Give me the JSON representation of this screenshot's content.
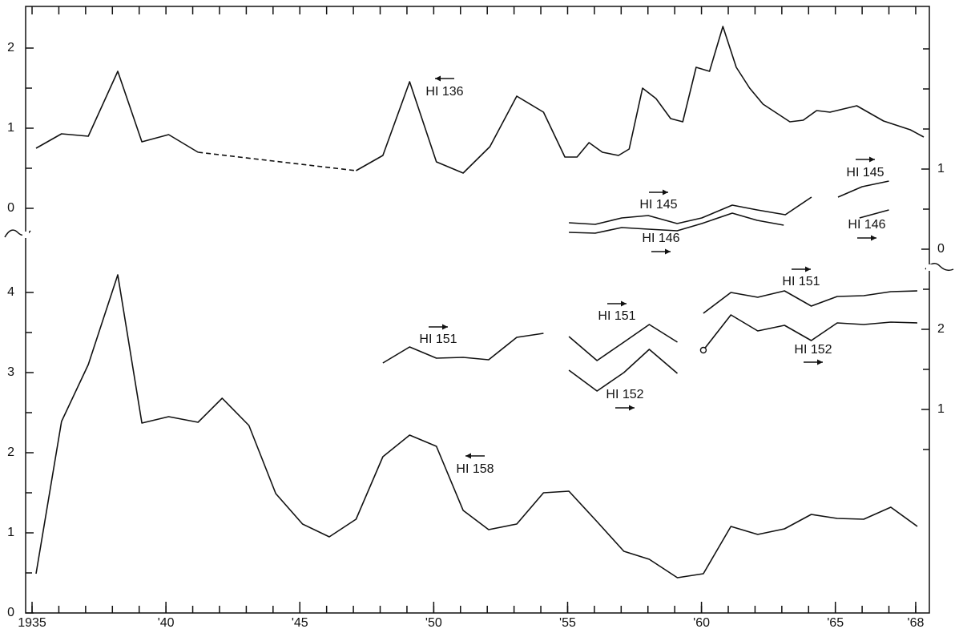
{
  "chart_data": [
    {
      "type": "line",
      "xlim": [
        1934.76,
        1968.51
      ],
      "ylim": [
        0,
        2.52
      ],
      "yticks": [
        0,
        1,
        2
      ],
      "minor_yticks": [
        0.5,
        1.5
      ],
      "y2lim": [
        0,
        3.03
      ],
      "y2ticks": [
        0,
        1
      ],
      "minor_y2ticks": [
        0.5,
        1.5,
        2,
        2.5
      ],
      "series": [
        {
          "name": "HI 136",
          "color": "#111111",
          "arrow": "left",
          "dashed_segments": [
            6
          ],
          "x": [
            1935.15,
            1936.1,
            1937.1,
            1938.2,
            1939.1,
            1940.1,
            1941.2,
            1947.1,
            1948.1,
            1949.1,
            1950.1,
            1951.1,
            1952.1,
            1953.1,
            1954.1,
            1954.9,
            1955.35,
            1955.8,
            1956.3,
            1956.9,
            1957.3,
            1957.8,
            1958.3,
            1958.85,
            1959.3,
            1959.8,
            1960.3,
            1960.8,
            1961.3,
            1961.8,
            1962.3,
            1963.3,
            1963.8,
            1964.3,
            1964.8,
            1965.8,
            1966.8,
            1967.8,
            1968.3
          ],
          "values": [
            0.75,
            0.93,
            0.9,
            1.71,
            0.83,
            0.92,
            0.7,
            0.47,
            0.66,
            1.58,
            0.58,
            0.44,
            0.77,
            1.4,
            1.2,
            0.64,
            0.64,
            0.82,
            0.7,
            0.66,
            0.74,
            1.5,
            1.37,
            1.12,
            1.08,
            1.76,
            1.71,
            2.27,
            1.76,
            1.5,
            1.3,
            1.08,
            1.1,
            1.22,
            1.2,
            1.28,
            1.09,
            0.98,
            0.89
          ]
        },
        {
          "name": "HI 145",
          "color": "#111111",
          "arrow": "right",
          "axis": "y2",
          "x": [
            1955.05,
            1956.03,
            1957.02,
            1958.01,
            1959.09,
            1960.01,
            1961.15,
            1962.08,
            1963.13,
            1964.11,
            null,
            1965.1,
            1966.0,
            1967.0
          ],
          "values": [
            0.33,
            0.31,
            0.39,
            0.42,
            0.32,
            0.39,
            0.55,
            0.49,
            0.43,
            0.65,
            null,
            0.65,
            0.78,
            0.85
          ]
        },
        {
          "name": "HI 146",
          "color": "#111111",
          "arrow": "right",
          "axis": "y2",
          "x": [
            1955.05,
            1956.03,
            1957.02,
            1958.01,
            1959.09,
            1960.01,
            1961.15,
            1962.08,
            1963.07,
            null,
            1965.9,
            1967.0
          ],
          "values": [
            0.21,
            0.2,
            0.27,
            0.25,
            0.23,
            0.32,
            0.45,
            0.36,
            0.3,
            null,
            0.39,
            0.49
          ]
        }
      ]
    },
    {
      "type": "line",
      "xlim": [
        1934.76,
        1968.51
      ],
      "xticks": [
        {
          "value": 1935,
          "label": "1935"
        },
        {
          "value": 1940,
          "label": "'40"
        },
        {
          "value": 1945,
          "label": "'45"
        },
        {
          "value": 1950,
          "label": "'50"
        },
        {
          "value": 1955,
          "label": "'55"
        },
        {
          "value": 1960,
          "label": "'60"
        },
        {
          "value": 1965,
          "label": "'65"
        },
        {
          "value": 1968,
          "label": "'68"
        }
      ],
      "minor_xticks": [
        1935,
        1936,
        1937,
        1938,
        1939,
        1940,
        1941,
        1942,
        1943,
        1944,
        1945,
        1946,
        1947,
        1948,
        1949,
        1950,
        1951,
        1952,
        1953,
        1954,
        1955,
        1956,
        1957,
        1958,
        1959,
        1960,
        1961,
        1962,
        1963,
        1964,
        1965,
        1966,
        1967,
        1968
      ],
      "ylim": [
        0,
        4.75
      ],
      "yticks": [
        0,
        1,
        2,
        3,
        4
      ],
      "minor_yticks": [
        0.5,
        1.5,
        2.5,
        3.5
      ],
      "y2lim": [
        -1.54,
        3.21
      ],
      "y2ticks": [
        1,
        2
      ],
      "minor_y2ticks": [
        0.5,
        1.5,
        2.5
      ],
      "series": [
        {
          "name": "HI 158",
          "color": "#111111",
          "arrow": "left",
          "x": [
            1935.15,
            1936.1,
            1937.1,
            1938.2,
            1939.1,
            1940.1,
            1941.2,
            1942.1,
            1943.1,
            1944.1,
            1945.1,
            1946.1,
            1947.1,
            1948.1,
            1949.1,
            1950.1,
            1951.1,
            1952.05,
            1953.1,
            1954.1,
            1955.05,
            1956.1,
            1957.1,
            1958.05,
            1959.1,
            1960.07,
            1961.1,
            1962.1,
            1963.1,
            1964.1,
            1965.07,
            1966.06,
            1967.07,
            1968.06
          ],
          "values": [
            0.49,
            2.39,
            3.1,
            4.22,
            2.37,
            2.45,
            2.38,
            2.68,
            2.34,
            1.49,
            1.11,
            0.95,
            1.17,
            1.95,
            2.22,
            2.08,
            1.28,
            1.04,
            1.11,
            1.5,
            1.52,
            1.14,
            0.77,
            0.67,
            0.44,
            0.49,
            1.08,
            0.98,
            1.05,
            1.23,
            1.18,
            1.17,
            1.32,
            1.08
          ]
        },
        {
          "name": "HI 151",
          "color": "#111111",
          "arrow": "right",
          "axis": "y2",
          "x": [
            1948.1,
            1949.1,
            1950.1,
            1951.1,
            1952.05,
            1953.1,
            1954.1,
            null,
            1955.05,
            1956.1,
            1957.1,
            1958.05,
            1959.1,
            null,
            1960.07,
            1961.1,
            1962.1,
            1963.1,
            1964.1,
            1965.07,
            1966.06,
            1967.07,
            1968.06
          ],
          "values": [
            1.58,
            1.78,
            1.64,
            1.65,
            1.62,
            1.9,
            1.95,
            null,
            1.91,
            1.61,
            1.84,
            2.06,
            1.84,
            null,
            2.2,
            2.46,
            2.4,
            2.48,
            2.29,
            2.41,
            2.42,
            2.47,
            2.48
          ]
        },
        {
          "name": "HI 152",
          "color": "#111111",
          "arrow": "right",
          "axis": "y2",
          "open_markers": [
            6
          ],
          "x": [
            1955.05,
            1956.1,
            1957.1,
            1958.05,
            1959.1,
            null,
            1960.07,
            1961.1,
            1962.1,
            1963.1,
            1964.1,
            1965.07,
            1966.06,
            1967.07,
            1968.06
          ],
          "values": [
            1.49,
            1.23,
            1.46,
            1.75,
            1.45,
            null,
            1.74,
            2.18,
            1.98,
            2.05,
            1.86,
            2.08,
            2.06,
            2.09,
            2.08
          ]
        }
      ]
    }
  ]
}
